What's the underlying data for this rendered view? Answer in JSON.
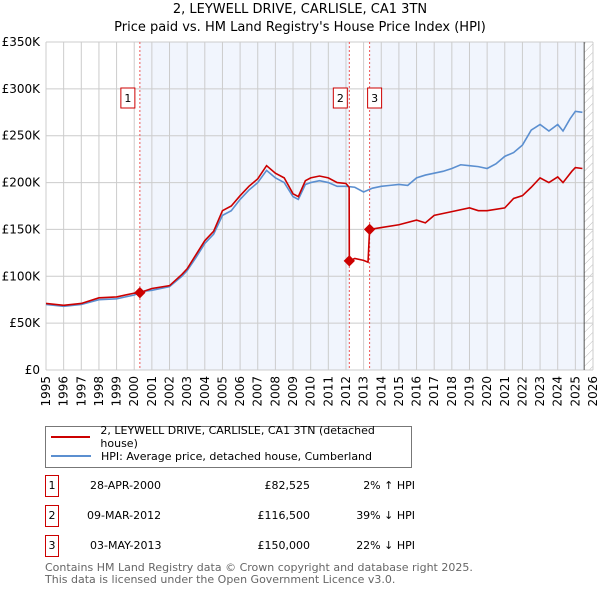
{
  "chart_data": {
    "type": "line",
    "title": "2, LEYWELL DRIVE, CARLISLE, CA1 3TN",
    "subtitle": "Price paid vs. HM Land Registry's House Price Index (HPI)",
    "xlim": [
      1995,
      2026
    ],
    "ylim": [
      0,
      350000
    ],
    "y_ticks": [
      0,
      50000,
      100000,
      150000,
      200000,
      250000,
      300000,
      350000
    ],
    "y_tick_labels": [
      "£0",
      "£50K",
      "£100K",
      "£150K",
      "£200K",
      "£250K",
      "£300K",
      "£350K"
    ],
    "x_tick_labels": [
      "1995",
      "1996",
      "1997",
      "1998",
      "1999",
      "2000",
      "2001",
      "2002",
      "2003",
      "2004",
      "2005",
      "2006",
      "2007",
      "2008",
      "2009",
      "2010",
      "2011",
      "2012",
      "2013",
      "2014",
      "2015",
      "2016",
      "2017",
      "2018",
      "2019",
      "2020",
      "2021",
      "2022",
      "2023",
      "2024",
      "2025",
      "2026"
    ],
    "grid": true,
    "series": [
      {
        "name": "2, LEYWELL DRIVE, CARLISLE, CA1 3TN (detached house)",
        "color": "#cc0000",
        "x": [
          1995,
          1996,
          1997,
          1998,
          1999,
          2000,
          2000.32,
          2001,
          2002,
          2002.7,
          2003,
          2003.5,
          2004,
          2004.5,
          2005,
          2005.5,
          2006,
          2006.5,
          2007,
          2007.5,
          2008,
          2008.5,
          2009,
          2009.3,
          2009.7,
          2010,
          2010.5,
          2011,
          2011.5,
          2012,
          2012.18,
          2012.19,
          2012.5,
          2013,
          2013.25,
          2013.34,
          2014,
          2015,
          2016,
          2016.5,
          2017,
          2018,
          2019,
          2019.5,
          2020,
          2021,
          2021.5,
          2022,
          2022.5,
          2023,
          2023.5,
          2024,
          2024.3,
          2024.8,
          2025,
          2025.4
        ],
        "y": [
          71000,
          69000,
          71000,
          77000,
          78000,
          82000,
          82525,
          87000,
          90000,
          102000,
          108000,
          123000,
          138000,
          148000,
          170000,
          175000,
          186000,
          196000,
          204000,
          218000,
          210000,
          205000,
          188000,
          185000,
          202000,
          205000,
          207000,
          205000,
          200000,
          199000,
          195000,
          116500,
          119000,
          117000,
          115000,
          150000,
          152000,
          155000,
          160000,
          157000,
          165000,
          169000,
          173000,
          170000,
          170000,
          173000,
          183000,
          186000,
          195000,
          205000,
          200000,
          206000,
          200000,
          212000,
          216000,
          215000
        ]
      },
      {
        "name": "HPI: Average price, detached house, Cumberland",
        "color": "#5b8fd0",
        "x": [
          1995,
          1996,
          1997,
          1998,
          1999,
          2000,
          2000.5,
          2001,
          2002,
          2002.7,
          2003,
          2003.5,
          2004,
          2004.5,
          2005,
          2005.5,
          2006,
          2006.5,
          2007,
          2007.5,
          2008,
          2008.5,
          2009,
          2009.3,
          2009.7,
          2010,
          2010.5,
          2011,
          2011.5,
          2012,
          2012.5,
          2013,
          2013.5,
          2014,
          2014.5,
          2015,
          2015.5,
          2016,
          2016.5,
          2017,
          2017.5,
          2018,
          2018.5,
          2019,
          2019.5,
          2020,
          2020.5,
          2021,
          2021.5,
          2022,
          2022.5,
          2023,
          2023.5,
          2024,
          2024.3,
          2024.7,
          2025,
          2025.4
        ],
        "y": [
          70000,
          68000,
          70000,
          75000,
          76000,
          80000,
          84000,
          85000,
          89000,
          100000,
          106000,
          120000,
          135000,
          145000,
          165000,
          170000,
          182000,
          192000,
          200000,
          213000,
          205000,
          200000,
          185000,
          182000,
          198000,
          200000,
          202000,
          200000,
          196000,
          196000,
          195000,
          190000,
          194000,
          196000,
          197000,
          198000,
          197000,
          205000,
          208000,
          210000,
          212000,
          215000,
          219000,
          218000,
          217000,
          215000,
          220000,
          228000,
          232000,
          240000,
          256000,
          262000,
          255000,
          262000,
          255000,
          268000,
          276000,
          275000
        ]
      }
    ],
    "sales": [
      {
        "label": "1",
        "x": 2000.32,
        "y": 82525,
        "date": "28-APR-2000",
        "price": "£82,525",
        "hpi": "2% ↑ HPI"
      },
      {
        "label": "2",
        "x": 2012.19,
        "y": 116500,
        "date": "09-MAR-2012",
        "price": "£116,500",
        "hpi": "39% ↓ HPI"
      },
      {
        "label": "3",
        "x": 2013.34,
        "y": 150000,
        "date": "03-MAY-2013",
        "price": "£150,000",
        "hpi": "22% ↓ HPI"
      }
    ],
    "forecast_start": 2025.5
  },
  "footer": [
    "Contains HM Land Registry data © Crown copyright and database right 2025.",
    "This data is licensed under the Open Government Licence v3.0."
  ]
}
